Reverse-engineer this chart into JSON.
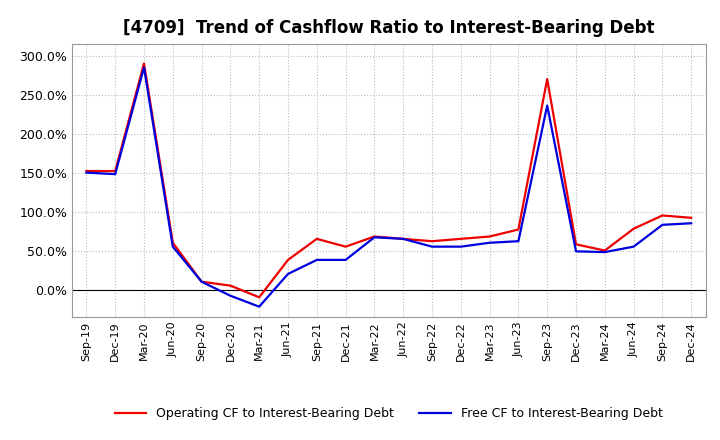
{
  "title": "[4709]  Trend of Cashflow Ratio to Interest-Bearing Debt",
  "x_labels": [
    "Sep-19",
    "Dec-19",
    "Mar-20",
    "Jun-20",
    "Sep-20",
    "Dec-20",
    "Mar-21",
    "Jun-21",
    "Sep-21",
    "Dec-21",
    "Mar-22",
    "Jun-22",
    "Sep-22",
    "Dec-22",
    "Mar-23",
    "Jun-23",
    "Sep-23",
    "Dec-23",
    "Mar-24",
    "Jun-24",
    "Sep-24",
    "Dec-24"
  ],
  "operating_cf": [
    152,
    152,
    290,
    60,
    10,
    5,
    -10,
    38,
    65,
    55,
    68,
    65,
    62,
    65,
    68,
    77,
    270,
    58,
    50,
    78,
    95,
    92
  ],
  "free_cf": [
    150,
    148,
    285,
    55,
    10,
    -8,
    -22,
    20,
    38,
    38,
    67,
    65,
    55,
    55,
    60,
    62,
    236,
    49,
    48,
    55,
    83,
    85
  ],
  "ylim": [
    -35,
    315
  ],
  "yticks": [
    0,
    50,
    100,
    150,
    200,
    250,
    300
  ],
  "operating_color": "#ee0000",
  "free_color": "#0000dd",
  "background_color": "#ffffff",
  "plot_bg_color": "#ffffff",
  "grid_color": "#bbbbbb",
  "legend_operating": "Operating CF to Interest-Bearing Debt",
  "legend_free": "Free CF to Interest-Bearing Debt",
  "title_fontsize": 12,
  "tick_fontsize": 8,
  "ytick_fontsize": 9
}
